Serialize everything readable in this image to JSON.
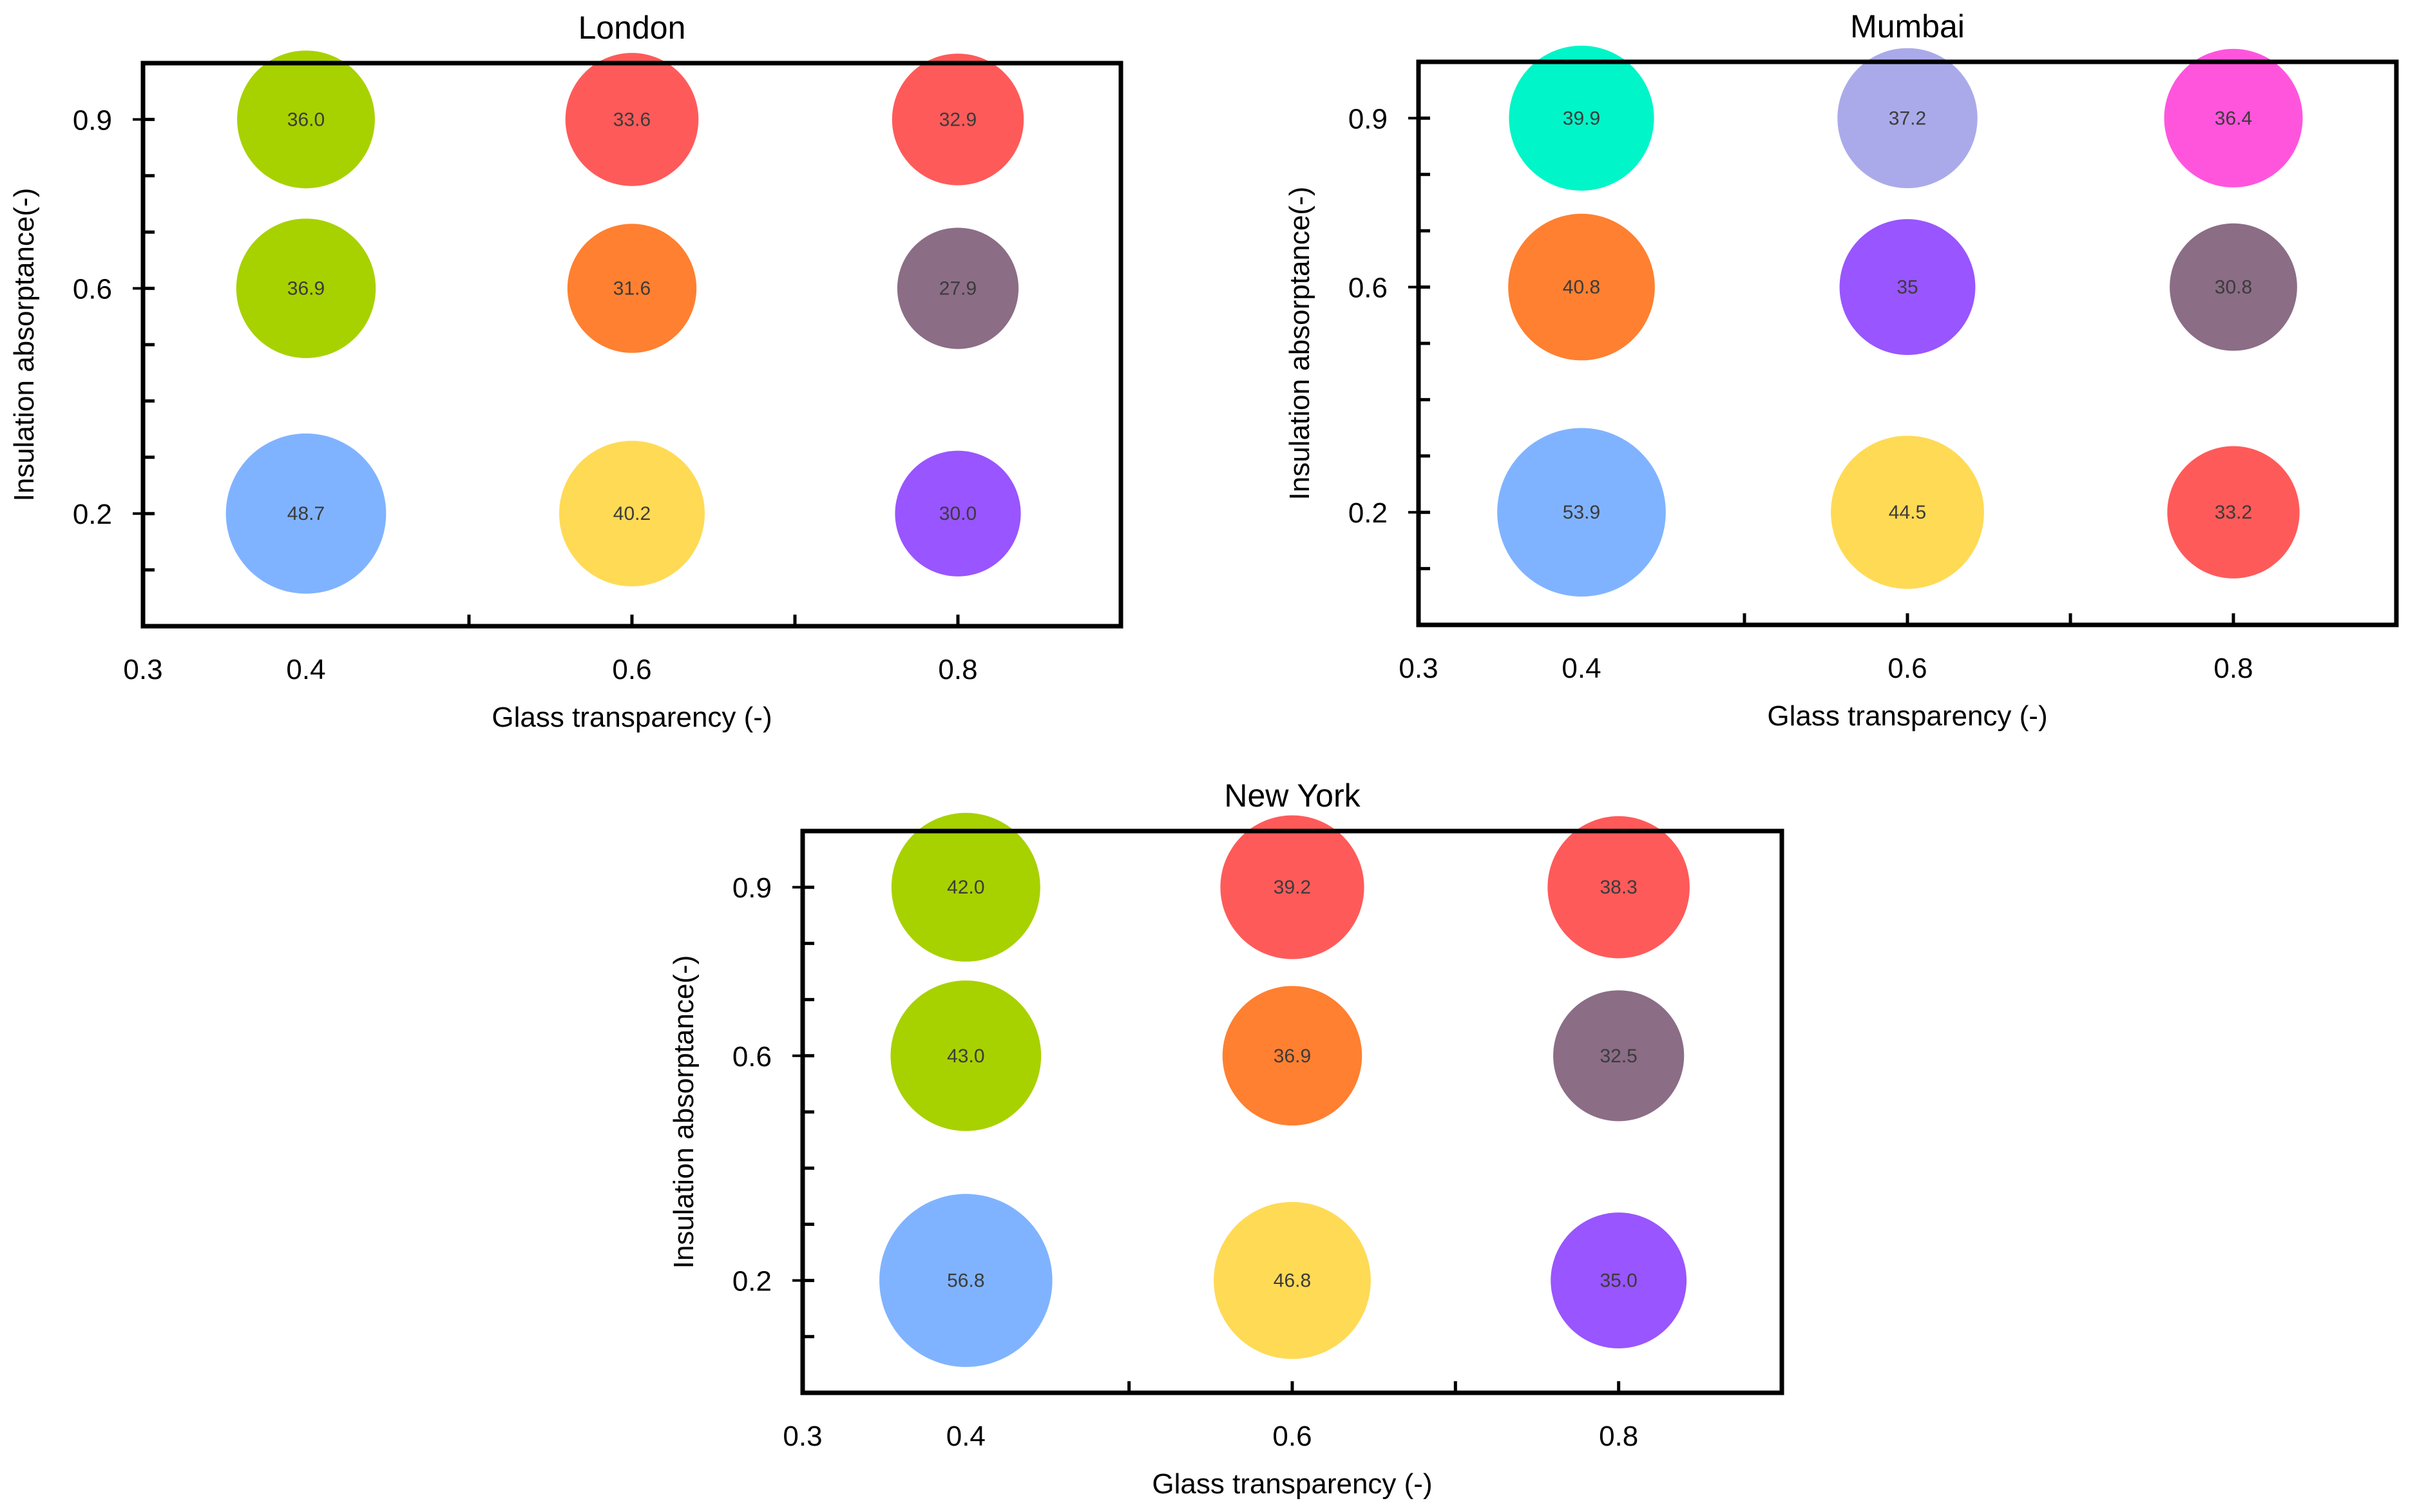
{
  "chart_data": [
    {
      "type": "scatter",
      "subtype": "bubble",
      "title": "London",
      "xlabel": "Glass transparency (-)",
      "ylabel": "Insulation absorptance(-)",
      "xlim": [
        0.3,
        0.9
      ],
      "ylim": [
        0.0,
        1.0
      ],
      "xticks": [
        0.3,
        0.4,
        0.6,
        0.8
      ],
      "yticks": [
        0.2,
        0.6,
        0.9
      ],
      "grid": false,
      "points": [
        {
          "x": 0.4,
          "y": 0.9,
          "value": "36.0",
          "color": "#a8d100"
        },
        {
          "x": 0.6,
          "y": 0.9,
          "value": "33.6",
          "color": "#ff5a5a"
        },
        {
          "x": 0.8,
          "y": 0.9,
          "value": "32.9",
          "color": "#ff5a5a"
        },
        {
          "x": 0.4,
          "y": 0.6,
          "value": "36.9",
          "color": "#a8d100"
        },
        {
          "x": 0.6,
          "y": 0.6,
          "value": "31.6",
          "color": "#ff8030"
        },
        {
          "x": 0.8,
          "y": 0.6,
          "value": "27.9",
          "color": "#8b6d86"
        },
        {
          "x": 0.4,
          "y": 0.2,
          "value": "48.7",
          "color": "#80b3ff"
        },
        {
          "x": 0.6,
          "y": 0.2,
          "value": "40.2",
          "color": "#ffda55"
        },
        {
          "x": 0.8,
          "y": 0.2,
          "value": "30.0",
          "color": "#9955ff"
        }
      ]
    },
    {
      "type": "scatter",
      "subtype": "bubble",
      "title": "Mumbai",
      "xlabel": "Glass transparency (-)",
      "ylabel": "Insulation absorptance(-)",
      "xlim": [
        0.3,
        0.9
      ],
      "ylim": [
        0.0,
        1.0
      ],
      "xticks": [
        0.3,
        0.4,
        0.6,
        0.8
      ],
      "yticks": [
        0.2,
        0.6,
        0.9
      ],
      "grid": false,
      "points": [
        {
          "x": 0.4,
          "y": 0.9,
          "value": "39.9",
          "color": "#00f5c8"
        },
        {
          "x": 0.6,
          "y": 0.9,
          "value": "37.2",
          "color": "#aaaaea"
        },
        {
          "x": 0.8,
          "y": 0.9,
          "value": "36.4",
          "color": "#ff55dd"
        },
        {
          "x": 0.4,
          "y": 0.6,
          "value": "40.8",
          "color": "#ff8030"
        },
        {
          "x": 0.6,
          "y": 0.6,
          "value": "35",
          "color": "#9955ff"
        },
        {
          "x": 0.8,
          "y": 0.6,
          "value": "30.8",
          "color": "#8b6d86"
        },
        {
          "x": 0.4,
          "y": 0.2,
          "value": "53.9",
          "color": "#80b3ff"
        },
        {
          "x": 0.6,
          "y": 0.2,
          "value": "44.5",
          "color": "#ffda55"
        },
        {
          "x": 0.8,
          "y": 0.2,
          "value": "33.2",
          "color": "#ff5a5a"
        }
      ]
    },
    {
      "type": "scatter",
      "subtype": "bubble",
      "title": "New York",
      "xlabel": "Glass transparency (-)",
      "ylabel": "Insulation absorptance(-)",
      "xlim": [
        0.3,
        0.9
      ],
      "ylim": [
        0.0,
        1.0
      ],
      "xticks": [
        0.3,
        0.4,
        0.6,
        0.8
      ],
      "yticks": [
        0.2,
        0.6,
        0.9
      ],
      "grid": false,
      "points": [
        {
          "x": 0.4,
          "y": 0.9,
          "value": "42.0",
          "color": "#a8d100"
        },
        {
          "x": 0.6,
          "y": 0.9,
          "value": "39.2",
          "color": "#ff5a5a"
        },
        {
          "x": 0.8,
          "y": 0.9,
          "value": "38.3",
          "color": "#ff5a5a"
        },
        {
          "x": 0.4,
          "y": 0.6,
          "value": "43.0",
          "color": "#a8d100"
        },
        {
          "x": 0.6,
          "y": 0.6,
          "value": "36.9",
          "color": "#ff8030"
        },
        {
          "x": 0.8,
          "y": 0.6,
          "value": "32.5",
          "color": "#8b6d86"
        },
        {
          "x": 0.4,
          "y": 0.2,
          "value": "56.8",
          "color": "#80b3ff"
        },
        {
          "x": 0.6,
          "y": 0.2,
          "value": "46.8",
          "color": "#ffda55"
        },
        {
          "x": 0.8,
          "y": 0.2,
          "value": "35.0",
          "color": "#9955ff"
        }
      ]
    }
  ]
}
